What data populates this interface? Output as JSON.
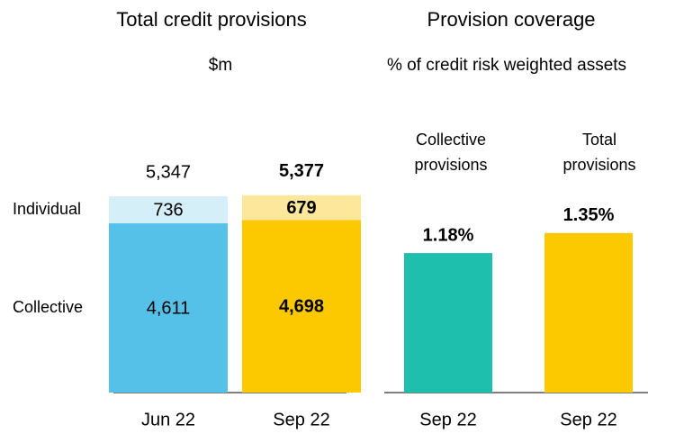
{
  "chart_data": [
    {
      "type": "stacked_bar",
      "title": "Total credit provisions",
      "subtitle": "$m",
      "categories": [
        "Jun 22",
        "Sep 22"
      ],
      "series": [
        {
          "name": "Collective",
          "colors": [
            "#56c1e8",
            "#fcc800"
          ],
          "values": [
            4611,
            4698
          ],
          "value_labels": [
            "4,611",
            "4,698"
          ]
        },
        {
          "name": "Individual",
          "colors": [
            "#d5eff9",
            "#fde79a"
          ],
          "values": [
            736,
            679
          ]
        }
      ],
      "totals": [
        5347,
        5377
      ],
      "total_labels": [
        "5,347",
        "5,377"
      ],
      "ylim": [
        0,
        6000
      ]
    },
    {
      "type": "bar",
      "title": "Provision coverage",
      "subtitle": "% of credit risk weighted assets",
      "group_labels": [
        [
          "Collective",
          "provisions"
        ],
        [
          "Total",
          "provisions"
        ]
      ],
      "categories": [
        "Sep 22",
        "Sep 22"
      ],
      "values": [
        1.18,
        1.35
      ],
      "value_labels": [
        "1.18%",
        "1.35%"
      ],
      "colors": [
        "#1fbfae",
        "#fcc800"
      ],
      "ylim": [
        0,
        1.6
      ]
    }
  ]
}
